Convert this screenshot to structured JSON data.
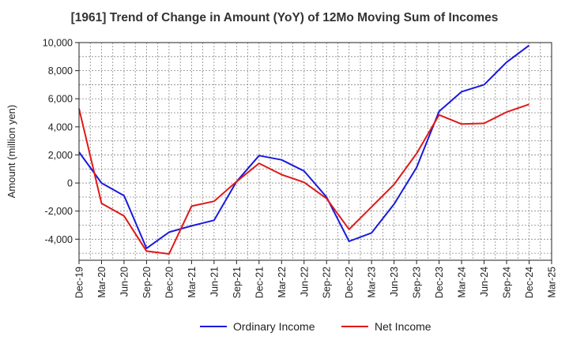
{
  "chart_data": {
    "type": "line",
    "title": "[1961]  Trend of Change in Amount (YoY) of 12Mo Moving Sum of Incomes",
    "xlabel": "",
    "ylabel": "Amount (million yen)",
    "ylim": [
      -5500,
      10000
    ],
    "yticks": [
      -4000,
      -2000,
      0,
      2000,
      4000,
      6000,
      8000,
      10000
    ],
    "ytick_labels": [
      "-4,000",
      "-2,000",
      "0",
      "2,000",
      "4,000",
      "6,000",
      "8,000",
      "10,000"
    ],
    "categories": [
      "Dec-19",
      "Mar-20",
      "Jun-20",
      "Sep-20",
      "Dec-20",
      "Mar-21",
      "Jun-21",
      "Sep-21",
      "Dec-21",
      "Mar-22",
      "Jun-22",
      "Sep-22",
      "Dec-22",
      "Mar-23",
      "Jun-23",
      "Sep-23",
      "Dec-23",
      "Mar-24",
      "Jun-24",
      "Sep-24",
      "Dec-24",
      "Mar-25"
    ],
    "grid": true,
    "legend_position": "bottom",
    "series": [
      {
        "name": "Ordinary Income",
        "color": "#1a1adc",
        "values": [
          2200,
          0,
          -900,
          -4650,
          -3500,
          -3050,
          -2650,
          100,
          1950,
          1650,
          850,
          -1000,
          -4150,
          -3550,
          -1500,
          1100,
          5100,
          6500,
          7000,
          8600,
          9800,
          null
        ]
      },
      {
        "name": "Net Income",
        "color": "#e01818",
        "values": [
          5300,
          -1450,
          -2350,
          -4850,
          -5050,
          -1650,
          -1300,
          100,
          1400,
          600,
          50,
          -1100,
          -3300,
          -1700,
          -100,
          2100,
          4850,
          4200,
          4250,
          5050,
          5600,
          null
        ]
      }
    ]
  }
}
